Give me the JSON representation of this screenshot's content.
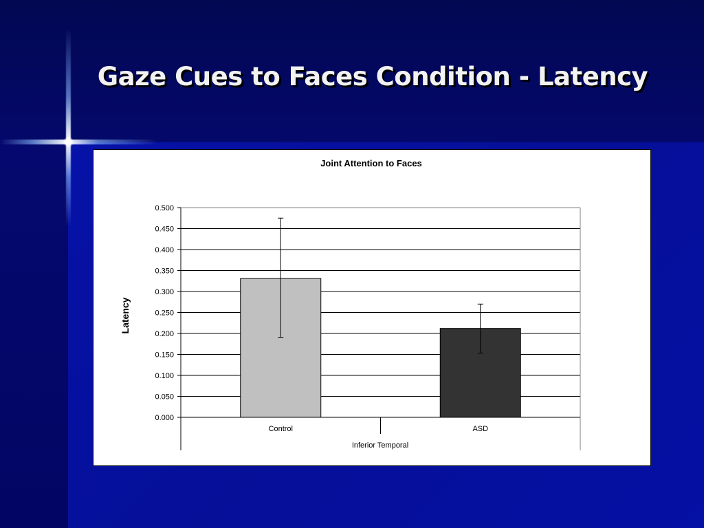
{
  "slide": {
    "title": "Gaze Cues to Faces Condition - Latency"
  },
  "colors": {
    "background": "#04067a",
    "title": "#f2f2f2",
    "control_bar": "#c0c0c0",
    "asd_bar": "#333333"
  },
  "chart_data": {
    "type": "bar",
    "title": "Joint Attention to Faces",
    "ylabel": "Latency",
    "xlabel": "Inferior Temporal",
    "categories": [
      "Control",
      "ASD"
    ],
    "values": [
      0.331,
      0.212
    ],
    "error_bars": [
      {
        "low": 0.191,
        "high": 0.475
      },
      {
        "low": 0.153,
        "high": 0.27
      }
    ],
    "bar_colors": [
      "#c0c0c0",
      "#333333"
    ],
    "ylim": [
      0,
      0.5
    ],
    "yticks": [
      "0.000",
      "0.050",
      "0.100",
      "0.150",
      "0.200",
      "0.250",
      "0.300",
      "0.350",
      "0.400",
      "0.450",
      "0.500"
    ],
    "grid": true,
    "legend": "none"
  }
}
